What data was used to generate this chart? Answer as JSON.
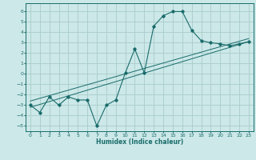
{
  "title": "",
  "xlabel": "Humidex (Indice chaleur)",
  "ylabel": "",
  "xlim": [
    -0.5,
    23.5
  ],
  "ylim": [
    -5.5,
    6.8
  ],
  "xticks": [
    0,
    1,
    2,
    3,
    4,
    5,
    6,
    7,
    8,
    9,
    10,
    11,
    12,
    13,
    14,
    15,
    16,
    17,
    18,
    19,
    20,
    21,
    22,
    23
  ],
  "yticks": [
    -5,
    -4,
    -3,
    -2,
    -1,
    0,
    1,
    2,
    3,
    4,
    5,
    6
  ],
  "bg_color": "#cce8e8",
  "grid_color": "#aacccc",
  "line_color": "#1a6b6b",
  "data_x": [
    0,
    1,
    2,
    3,
    4,
    5,
    6,
    7,
    8,
    9,
    10,
    11,
    12,
    13,
    14,
    15,
    16,
    17,
    18,
    19,
    20,
    21,
    22,
    23
  ],
  "data_y": [
    -3.0,
    -3.7,
    -2.2,
    -3.0,
    -2.2,
    -2.5,
    -2.5,
    -5.0,
    -3.0,
    -2.5,
    0.1,
    2.4,
    0.1,
    4.6,
    5.6,
    6.0,
    6.0,
    4.2,
    3.2,
    3.0,
    2.9,
    2.7,
    2.9,
    3.1
  ],
  "line1_x": [
    0,
    23
  ],
  "line1_y": [
    -3.2,
    3.1
  ],
  "line2_x": [
    0,
    23
  ],
  "line2_y": [
    -2.6,
    3.4
  ]
}
